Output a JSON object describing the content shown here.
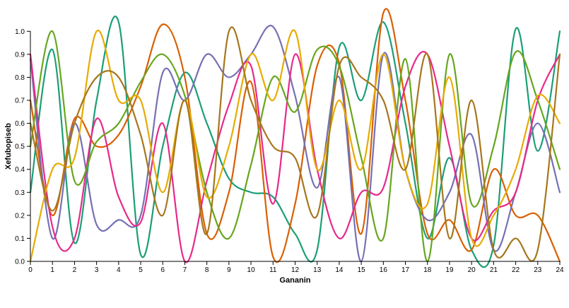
{
  "chart_data": {
    "type": "line",
    "title": "",
    "xlabel": "Gananin",
    "ylabel": "Xefubopiseb",
    "x": [
      0,
      1,
      2,
      3,
      4,
      5,
      6,
      7,
      8,
      9,
      10,
      11,
      12,
      13,
      14,
      15,
      16,
      17,
      18,
      19,
      20,
      21,
      22,
      23,
      24
    ],
    "xlim": [
      0,
      24
    ],
    "ylim": [
      0,
      1.05
    ],
    "x_ticks": [
      "0",
      "1",
      "2",
      "3",
      "4",
      "5",
      "6",
      "7",
      "8",
      "9",
      "10",
      "11",
      "12",
      "13",
      "14",
      "15",
      "16",
      "17",
      "18",
      "19",
      "20",
      "21",
      "22",
      "23",
      "24"
    ],
    "y_ticks": [
      "0.0",
      "0.1",
      "0.2",
      "0.3",
      "0.4",
      "0.5",
      "0.6",
      "0.7",
      "0.8",
      "0.9",
      "1.0"
    ],
    "grid": false,
    "interpolation": "smooth",
    "series": [
      {
        "color": "#1b9e77",
        "values": [
          0.3,
          0.92,
          0.08,
          0.7,
          1.04,
          0.03,
          0.5,
          0.82,
          0.6,
          0.36,
          0.3,
          0.28,
          0.12,
          0.05,
          0.93,
          0.7,
          1.04,
          0.6,
          0.1,
          0.45,
          0.05,
          0.07,
          1.01,
          0.48,
          1.0
        ]
      },
      {
        "color": "#d95f02",
        "values": [
          0.7,
          0.2,
          0.62,
          0.5,
          0.55,
          0.76,
          1.03,
          0.8,
          0.12,
          0.3,
          0.78,
          0.02,
          0.25,
          0.85,
          0.86,
          0.12,
          1.08,
          0.7,
          0.12,
          0.18,
          0.05,
          0.4,
          0.2,
          0.2,
          0.0
        ]
      },
      {
        "color": "#7570b3",
        "values": [
          0.88,
          0.1,
          0.6,
          0.16,
          0.18,
          0.2,
          0.82,
          0.7,
          0.9,
          0.8,
          0.9,
          1.02,
          0.72,
          0.32,
          0.8,
          0.0,
          0.9,
          0.4,
          0.18,
          0.3,
          0.55,
          0.05,
          0.3,
          0.6,
          0.3
        ]
      },
      {
        "color": "#e7298a",
        "values": [
          0.9,
          0.15,
          0.1,
          0.62,
          0.28,
          0.17,
          0.6,
          0.0,
          0.35,
          0.68,
          0.85,
          0.25,
          0.9,
          0.4,
          0.1,
          0.3,
          0.32,
          0.76,
          0.9,
          0.5,
          0.1,
          0.22,
          0.3,
          0.7,
          0.9
        ]
      },
      {
        "color": "#66a61e",
        "values": [
          0.5,
          1.0,
          0.35,
          0.52,
          0.6,
          0.78,
          0.9,
          0.72,
          0.3,
          0.1,
          0.42,
          0.8,
          0.65,
          0.92,
          0.85,
          0.45,
          0.1,
          0.88,
          0.0,
          0.9,
          0.25,
          0.5,
          0.91,
          0.7,
          0.4
        ]
      },
      {
        "color": "#e6ab02",
        "values": [
          0.0,
          0.4,
          0.45,
          1.0,
          0.7,
          0.7,
          0.3,
          0.7,
          0.28,
          0.5,
          0.9,
          0.7,
          1.0,
          0.4,
          0.7,
          0.4,
          0.9,
          0.4,
          0.25,
          0.8,
          0.1,
          0.2,
          0.4,
          0.72,
          0.6
        ]
      },
      {
        "color": "#a6761d",
        "values": [
          0.6,
          0.22,
          0.6,
          0.8,
          0.8,
          0.55,
          0.2,
          0.7,
          0.12,
          1.0,
          0.7,
          0.5,
          0.45,
          0.2,
          0.85,
          0.8,
          0.7,
          0.4,
          0.9,
          0.1,
          0.7,
          0.05,
          0.1,
          0.05,
          0.9
        ]
      }
    ]
  }
}
